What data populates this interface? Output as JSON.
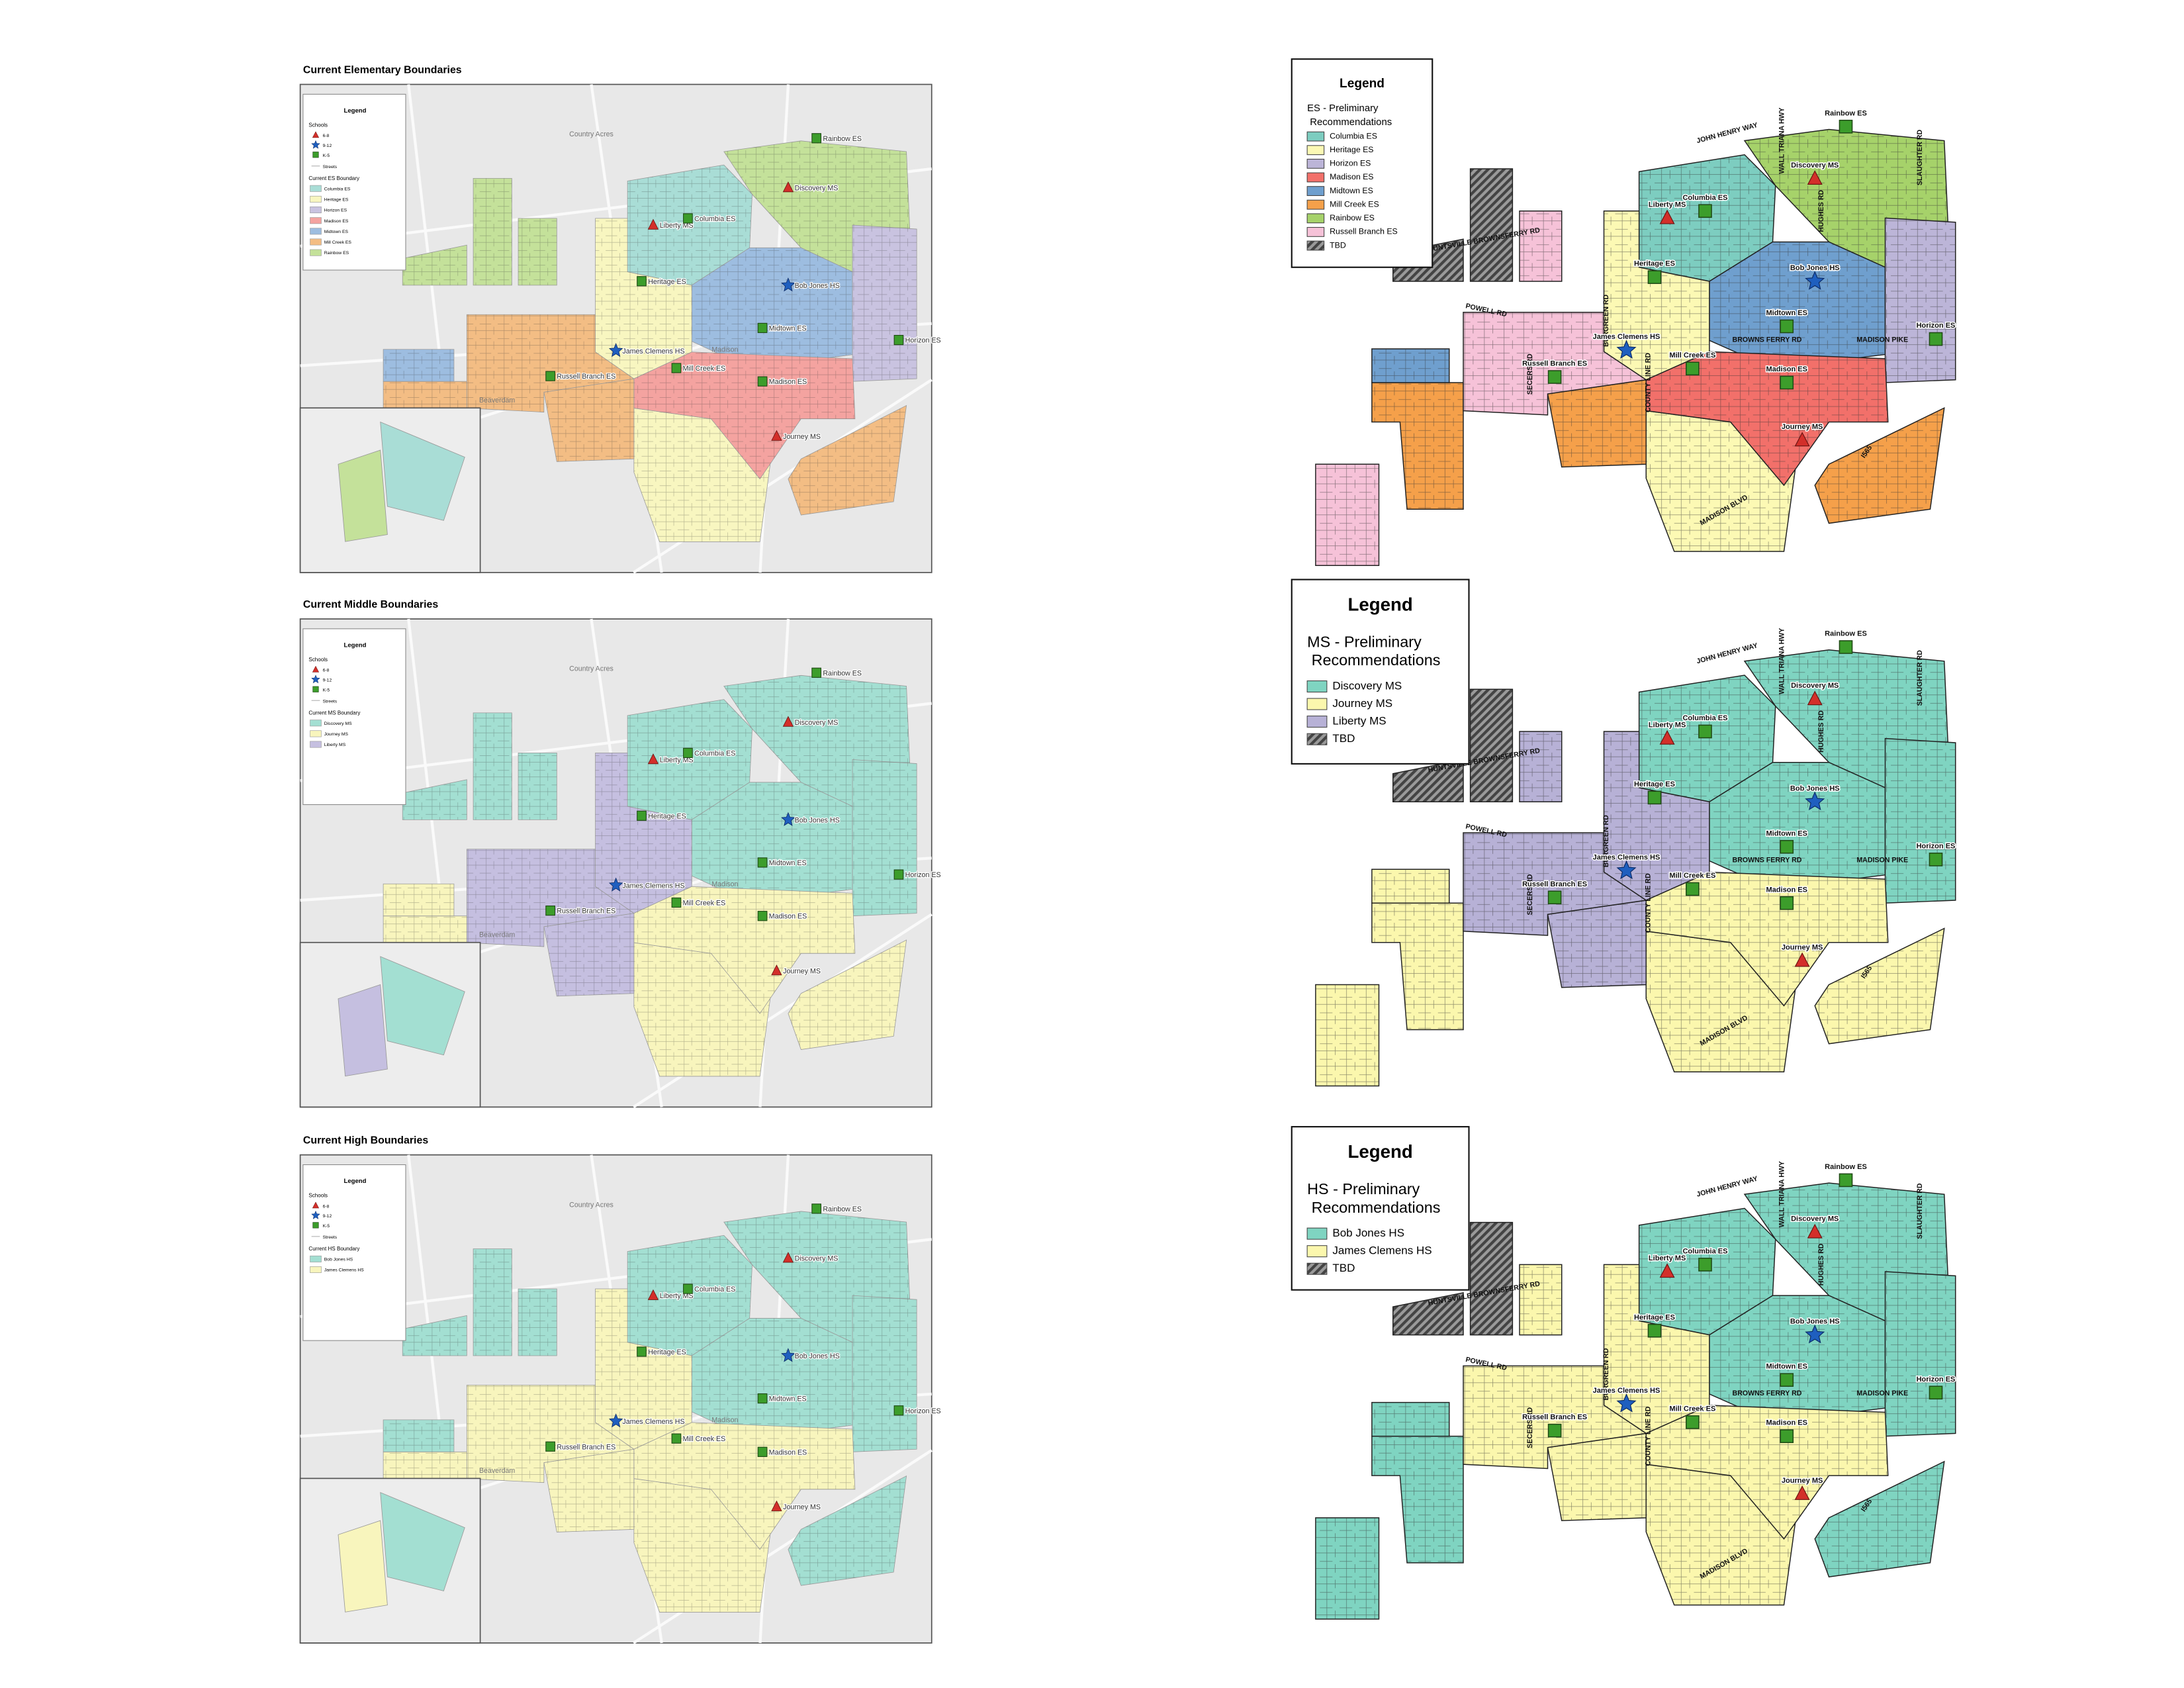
{
  "left_maps": [
    {
      "title": "Current Elementary Boundaries",
      "legend": {
        "title": "Legend",
        "schools_heading": "Schools",
        "school_types": [
          "6-8",
          "9-12",
          "K-5"
        ],
        "streets": "Streets",
        "boundary_heading": "Current ES Boundary",
        "items": [
          {
            "label": "Columbia ES",
            "color": "#a9ddd6"
          },
          {
            "label": "Heritage ES",
            "color": "#f8f6c0"
          },
          {
            "label": "Horizon ES",
            "color": "#c9c3e0"
          },
          {
            "label": "Madison ES",
            "color": "#f4a3a0"
          },
          {
            "label": "Midtown ES",
            "color": "#9dbde0"
          },
          {
            "label": "Mill Creek ES",
            "color": "#f3bd84"
          },
          {
            "label": "Rainbow ES",
            "color": "#c4e19a"
          }
        ]
      }
    },
    {
      "title": "Current Middle Boundaries",
      "legend": {
        "title": "Legend",
        "schools_heading": "Schools",
        "school_types": [
          "6-8",
          "9-12",
          "K-5"
        ],
        "streets": "Streets",
        "boundary_heading": "Current MS Boundary",
        "items": [
          {
            "label": "Discovery MS",
            "color": "#a3dfd2"
          },
          {
            "label": "Journey MS",
            "color": "#f8f5bd"
          },
          {
            "label": "Liberty MS",
            "color": "#c5bfe0"
          }
        ]
      }
    },
    {
      "title": "Current High Boundaries",
      "legend": {
        "title": "Legend",
        "schools_heading": "Schools",
        "school_types": [
          "6-8",
          "9-12",
          "K-5"
        ],
        "streets": "Streets",
        "boundary_heading": "Current HS Boundary",
        "items": [
          {
            "label": "Bob Jones HS",
            "color": "#a3dfd2"
          },
          {
            "label": "James Clemens HS",
            "color": "#f8f5bd"
          }
        ]
      }
    }
  ],
  "places": [
    "Country Acres",
    "Madison",
    "Beaverdam"
  ],
  "right_maps": [
    {
      "legend": {
        "title": "Legend",
        "heading": "ES - Preliminary Recommendations",
        "items": [
          {
            "label": "Columbia ES",
            "color": "#7dcdc0"
          },
          {
            "label": "Heritage ES",
            "color": "#fcf9b4"
          },
          {
            "label": "Horizon ES",
            "color": "#bcb5d8"
          },
          {
            "label": "Madison ES",
            "color": "#f2706a"
          },
          {
            "label": "Midtown ES",
            "color": "#6f9fce"
          },
          {
            "label": "Mill Creek ES",
            "color": "#f5a04a"
          },
          {
            "label": "Rainbow ES",
            "color": "#a6d26a"
          },
          {
            "label": "Russell Branch ES",
            "color": "#f6c2d8"
          },
          {
            "label": "TBD",
            "color": "#555555",
            "hatch": true
          }
        ]
      }
    },
    {
      "legend": {
        "title": "Legend",
        "heading": "MS - Preliminary Recommendations",
        "items": [
          {
            "label": "Discovery MS",
            "color": "#7fd4c1"
          },
          {
            "label": "Journey MS",
            "color": "#fbf7ad"
          },
          {
            "label": "Liberty MS",
            "color": "#b7b1d6"
          },
          {
            "label": "TBD",
            "color": "#555555",
            "hatch": true
          }
        ]
      }
    },
    {
      "legend": {
        "title": "Legend",
        "heading": "HS - Preliminary Recommendations",
        "items": [
          {
            "label": "Bob Jones HS",
            "color": "#7fd4c1"
          },
          {
            "label": "James Clemens HS",
            "color": "#fbf7ad"
          },
          {
            "label": "TBD",
            "color": "#555555",
            "hatch": true
          }
        ]
      }
    }
  ],
  "roads": [
    "JOHN HENRY WAY",
    "WALL TRIANA HWY",
    "HUGHES RD",
    "SLAUGHTER RD",
    "HUNTSVILLE BROWNSFERRY RD",
    "POWELL RD",
    "BURGREEN RD",
    "COUNTY LINE RD",
    "SECERS RD",
    "BROWNS FERRY RD",
    "MADISON PIKE",
    "MADISON BLVD",
    "I565"
  ],
  "schools": [
    "Rainbow ES",
    "Discovery MS",
    "Liberty MS",
    "Columbia ES",
    "Heritage ES",
    "Bob Jones HS",
    "Midtown ES",
    "Horizon ES",
    "James Clemens HS",
    "Russell Branch ES",
    "Mill Creek ES",
    "Madison ES",
    "Journey MS"
  ]
}
